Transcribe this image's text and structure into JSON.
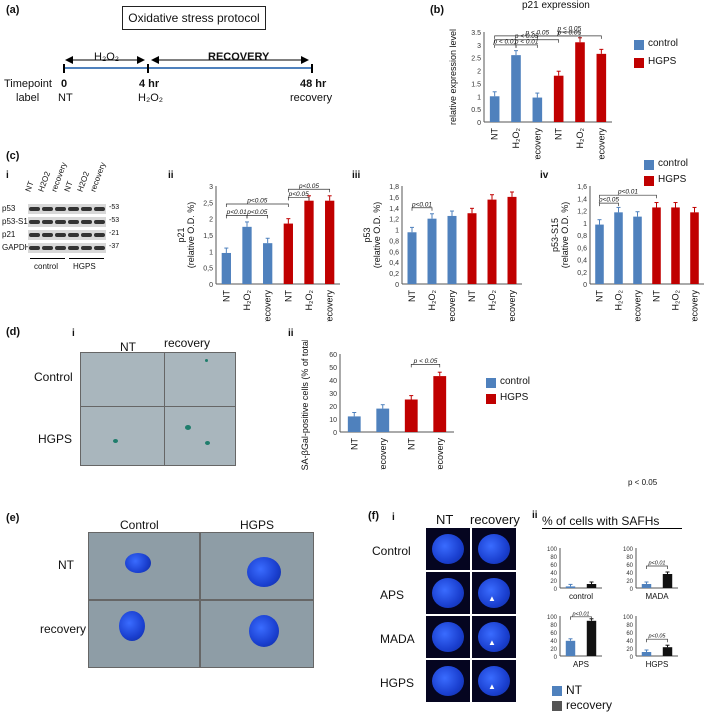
{
  "panel_labels": {
    "a": "(a)",
    "b": "(b)",
    "c": "(c)",
    "d": "(d)",
    "e": "(e)",
    "f": "(f)"
  },
  "sub_labels": {
    "i": "i",
    "ii": "ii",
    "iii": "iii",
    "iv": "iv"
  },
  "panel_a": {
    "protocol_title": "Oxidative stress protocol",
    "h2o2": "H₂O₂",
    "recovery": "RECOVERY",
    "timepoint": "Timepoint",
    "label": "label",
    "t0": "0",
    "t0_label": "NT",
    "t4": "4 hr",
    "t4_label": "H₂O₂",
    "t48": "48 hr",
    "t48_label": "recovery"
  },
  "panel_b": {
    "title": "p21 expression",
    "ylabel": "relative expression level"
  },
  "legend": {
    "control": "control",
    "hgps": "HGPS"
  },
  "colors": {
    "control": "#4f81bd",
    "hgps": "#c00000"
  },
  "western": {
    "lanes": [
      "NT",
      "H2O2",
      "recovery",
      "NT",
      "H2O2",
      "recovery"
    ],
    "rows": [
      "p53",
      "p53-S15",
      "p21",
      "GAPDH"
    ],
    "kda": [
      "-53",
      "-53",
      "-21",
      "-37"
    ],
    "groups": [
      "control",
      "HGPS"
    ]
  },
  "panel_d": {
    "col1": "NT",
    "col2": "recovery",
    "row1": "Control",
    "row2": "HGPS",
    "ylabel1": "SA-βGal-positive cells",
    "ylabel2": "(% of total cells)"
  },
  "stray_p": "p < 0.05",
  "panel_e": {
    "col1": "Control",
    "col2": "HGPS",
    "row1": "NT",
    "row2": "recovery"
  },
  "panel_f": {
    "col1": "NT",
    "col2": "recovery",
    "rows": [
      "Control",
      "APS",
      "MADA",
      "HGPS"
    ],
    "safh_title": "% of cells with SAFHs",
    "legend_nt": "NT",
    "legend_rec": "recovery"
  },
  "chart_data": [
    {
      "id": "b",
      "type": "bar",
      "title": "p21 expression",
      "ylabel": "relative expression level",
      "ylim": [
        0,
        3.5
      ],
      "categories": [
        "NT",
        "H2O2",
        "recovery",
        "NT",
        "H2O2",
        "recovery"
      ],
      "groups": [
        "control",
        "control",
        "control",
        "HGPS",
        "HGPS",
        "HGPS"
      ],
      "values": [
        1.0,
        2.6,
        0.95,
        1.8,
        3.1,
        2.65
      ],
      "annotations": [
        "p < 0.01",
        "p < 0.01",
        "p < 0.05",
        "p < 0.05",
        "p < 0.05",
        "p < 0.05"
      ]
    },
    {
      "id": "c-ii",
      "type": "bar",
      "ylabel": "p21",
      "ylabel2": "(relative O.D. %)",
      "ylim": [
        0,
        3
      ],
      "yticks": [
        "0",
        "0,5",
        "1",
        "1,5",
        "2",
        "2,5",
        "3"
      ],
      "categories": [
        "NT",
        "H2O2",
        "recovery",
        "NT",
        "H2O2",
        "recovery"
      ],
      "groups": [
        "control",
        "control",
        "control",
        "HGPS",
        "HGPS",
        "HGPS"
      ],
      "values": [
        0.95,
        1.75,
        1.25,
        1.85,
        2.55,
        2.55
      ],
      "annotations": [
        "p<0.01",
        "p<0.05",
        "p<0.05",
        "p<0.05",
        "p<0.05"
      ]
    },
    {
      "id": "c-iii",
      "type": "bar",
      "ylabel": "p53",
      "ylabel2": "(relative O.D. %)",
      "ylim": [
        0,
        1.8
      ],
      "yticks": [
        "0",
        "0,2",
        "0,4",
        "0,6",
        "0,8",
        "1",
        "1,2",
        "1,4",
        "1,6",
        "1,8"
      ],
      "categories": [
        "NT",
        "H2O2",
        "recovery",
        "NT",
        "H2O2",
        "recovery"
      ],
      "groups": [
        "control",
        "control",
        "control",
        "HGPS",
        "HGPS",
        "HGPS"
      ],
      "values": [
        0.95,
        1.2,
        1.25,
        1.3,
        1.55,
        1.6
      ],
      "annotations": [
        "p<0.01"
      ]
    },
    {
      "id": "c-iv",
      "type": "bar",
      "ylabel": "p53-S15",
      "ylabel2": "(relative O.D. %)",
      "ylim": [
        0,
        1.6
      ],
      "yticks": [
        "0",
        "0,2",
        "0,4",
        "0,6",
        "0,8",
        "1",
        "1,2",
        "1,4",
        "1,6"
      ],
      "categories": [
        "NT",
        "H2O2",
        "recovery",
        "NT",
        "H2O2",
        "recovery"
      ],
      "groups": [
        "control",
        "control",
        "control",
        "HGPS",
        "HGPS",
        "HGPS"
      ],
      "values": [
        0.97,
        1.17,
        1.1,
        1.25,
        1.25,
        1.17
      ],
      "annotations": [
        "p<0.05",
        "p<0.01"
      ]
    },
    {
      "id": "d-ii",
      "type": "bar",
      "ylabel": "SA-βGal-positive cells (% of total cells)",
      "ylim": [
        0,
        60
      ],
      "yticks": [
        "0",
        "10",
        "20",
        "30",
        "40",
        "50",
        "60"
      ],
      "categories": [
        "NT",
        "recovery",
        "NT",
        "recovery"
      ],
      "groups": [
        "control",
        "control",
        "HGPS",
        "HGPS"
      ],
      "values": [
        12,
        18,
        25,
        43
      ],
      "annotations": [
        "p < 0.05"
      ]
    },
    {
      "id": "f-control",
      "type": "bar",
      "title": "control",
      "ylim": [
        0,
        100
      ],
      "yticks": [
        "0",
        "20",
        "40",
        "60",
        "80",
        "100"
      ],
      "categories": [
        "NT",
        "recovery"
      ],
      "values": [
        4,
        10
      ]
    },
    {
      "id": "f-mada",
      "type": "bar",
      "title": "MADA",
      "ylim": [
        0,
        100
      ],
      "yticks": [
        "0",
        "20",
        "40",
        "60",
        "80",
        "100"
      ],
      "categories": [
        "NT",
        "recovery"
      ],
      "values": [
        10,
        35
      ],
      "annotations": [
        "p<0.01"
      ]
    },
    {
      "id": "f-aps",
      "type": "bar",
      "title": "APS",
      "ylim": [
        0,
        100
      ],
      "yticks": [
        "0",
        "20",
        "40",
        "60",
        "80",
        "100"
      ],
      "categories": [
        "NT",
        "recovery"
      ],
      "values": [
        38,
        88
      ],
      "annotations": [
        "p<0.01"
      ]
    },
    {
      "id": "f-hgps",
      "type": "bar",
      "title": "HGPS",
      "ylim": [
        0,
        100
      ],
      "yticks": [
        "0",
        "20",
        "40",
        "60",
        "80",
        "100"
      ],
      "categories": [
        "NT",
        "recovery"
      ],
      "values": [
        10,
        22
      ],
      "annotations": [
        "p<0.05"
      ]
    }
  ]
}
